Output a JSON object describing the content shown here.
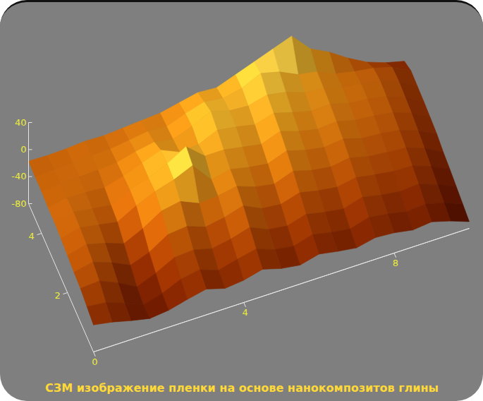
{
  "chart_data": {
    "type": "surface",
    "title": "СЗМ изображение пленки на основе нанокомпозитов глины",
    "x": [
      0,
      0.5,
      1,
      1.5,
      2,
      2.5,
      3,
      3.5,
      4,
      4.5,
      5,
      5.5,
      6,
      6.5,
      7,
      7.5,
      8,
      8.5,
      9,
      9.5,
      10
    ],
    "y": [
      0,
      0.5,
      1,
      1.5,
      2,
      2.5,
      3,
      3.5,
      4,
      4.5,
      5
    ],
    "z": [
      [
        -40,
        -45,
        -52,
        -58,
        -55,
        -48,
        -42,
        -50,
        -47,
        -40,
        -48,
        -52,
        -45,
        -50,
        -54,
        -48,
        -50,
        -55,
        -52,
        -60,
        -70
      ],
      [
        -35,
        -38,
        -48,
        -60,
        -52,
        -40,
        -35,
        -45,
        -38,
        -32,
        -42,
        -46,
        -38,
        -44,
        -48,
        -40,
        -44,
        -50,
        -48,
        -55,
        -66
      ],
      [
        -30,
        -28,
        -40,
        -55,
        -44,
        -30,
        -28,
        -35,
        -30,
        -22,
        -34,
        -38,
        -30,
        -36,
        -40,
        -32,
        -38,
        -42,
        -40,
        -50,
        -62
      ],
      [
        -28,
        -22,
        -32,
        -45,
        -35,
        -18,
        -15,
        -25,
        -20,
        -12,
        -25,
        -28,
        -20,
        -26,
        -30,
        -25,
        -30,
        -34,
        -35,
        -45,
        -58
      ],
      [
        -25,
        -18,
        -25,
        -35,
        -22,
        -5,
        0,
        -12,
        -10,
        -5,
        -15,
        -20,
        -10,
        -18,
        -22,
        -18,
        -25,
        -28,
        -30,
        -40,
        -55
      ],
      [
        -22,
        -15,
        -20,
        -25,
        -10,
        2,
        10,
        22,
        -8,
        -2,
        -8,
        -12,
        -2,
        -10,
        -15,
        -12,
        -20,
        -22,
        -26,
        -36,
        -50
      ],
      [
        -20,
        -14,
        -18,
        -22,
        -8,
        0,
        12,
        28,
        5,
        5,
        0,
        -5,
        5,
        -4,
        -10,
        -8,
        -15,
        -18,
        -22,
        -32,
        -48
      ],
      [
        -20,
        -15,
        -16,
        -18,
        -10,
        0,
        10,
        -2,
        0,
        12,
        8,
        2,
        10,
        2,
        -5,
        -4,
        -12,
        -15,
        -20,
        -30,
        -46
      ],
      [
        -18,
        -16,
        -15,
        -14,
        -12,
        -5,
        0,
        -5,
        5,
        18,
        10,
        8,
        15,
        10,
        0,
        -2,
        -10,
        -14,
        -18,
        -28,
        -45
      ],
      [
        -18,
        -17,
        -16,
        -14,
        -14,
        -10,
        -6,
        -8,
        2,
        10,
        6,
        12,
        25,
        18,
        5,
        0,
        -12,
        -18,
        -22,
        -30,
        -44
      ],
      [
        -17,
        -18,
        -17,
        -15,
        -16,
        -14,
        -12,
        -10,
        -4,
        2,
        0,
        10,
        20,
        30,
        40,
        12,
        -2,
        -20,
        -35,
        -45,
        -52
      ]
    ],
    "xlim": [
      0,
      10
    ],
    "xticks": [
      0,
      4,
      8
    ],
    "ylim": [
      0,
      5
    ],
    "yticks": [
      2,
      4
    ],
    "zlim": [
      -80,
      40
    ],
    "zticks": [
      40,
      0,
      -40,
      -80
    ]
  }
}
